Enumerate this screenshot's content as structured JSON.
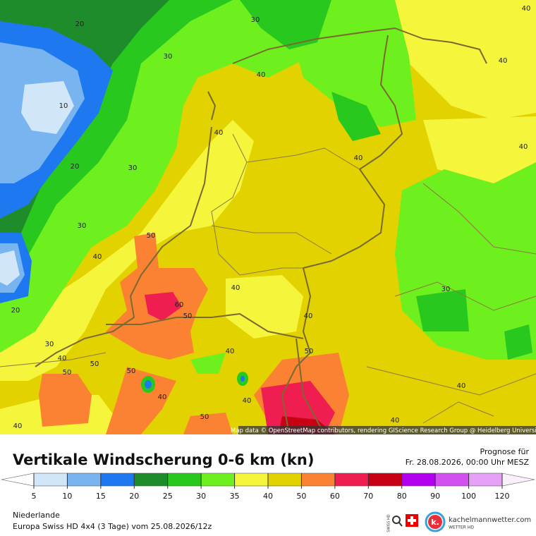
{
  "map": {
    "attribution": "Map data © OpenStreetMap contributors, rendering GIScience Research Group @ Heidelberg University",
    "contour_labels": [
      20,
      30,
      30,
      40,
      40,
      40,
      10,
      40,
      40,
      20,
      30,
      40,
      30,
      50,
      40,
      30,
      40,
      60,
      50,
      40,
      20,
      40,
      30,
      50,
      40,
      50,
      50,
      50,
      40,
      40,
      40,
      50,
      40,
      40
    ]
  },
  "legend": {
    "title": "Vertikale Windscherung 0-6 km (kn)",
    "forecast_label": "Prognose für",
    "forecast_time": "Fr. 28.08.2026, 00:00 Uhr MESZ",
    "ticks": [
      5,
      10,
      15,
      20,
      25,
      30,
      35,
      40,
      50,
      60,
      70,
      80,
      90,
      100,
      120
    ],
    "colors": [
      "#ffffff",
      "#d2e6fa",
      "#78b4f0",
      "#1e78f0",
      "#1e8c2a",
      "#28c81e",
      "#6ef01e",
      "#f5f53c",
      "#e1d200",
      "#fa8232",
      "#f01e50",
      "#c80014",
      "#b400f0",
      "#d250f0",
      "#e6a0f5",
      "#faf0fa"
    ]
  },
  "footer": {
    "region": "Niederlande",
    "model": "Europa Swiss HD 4x4 (3 Tage) vom 25.08.2026/12z",
    "swiss": "SWISS HD",
    "logo_letter": "k.",
    "brand": "kachelmannwetter.com",
    "brand_sub": "WETTER HD"
  }
}
